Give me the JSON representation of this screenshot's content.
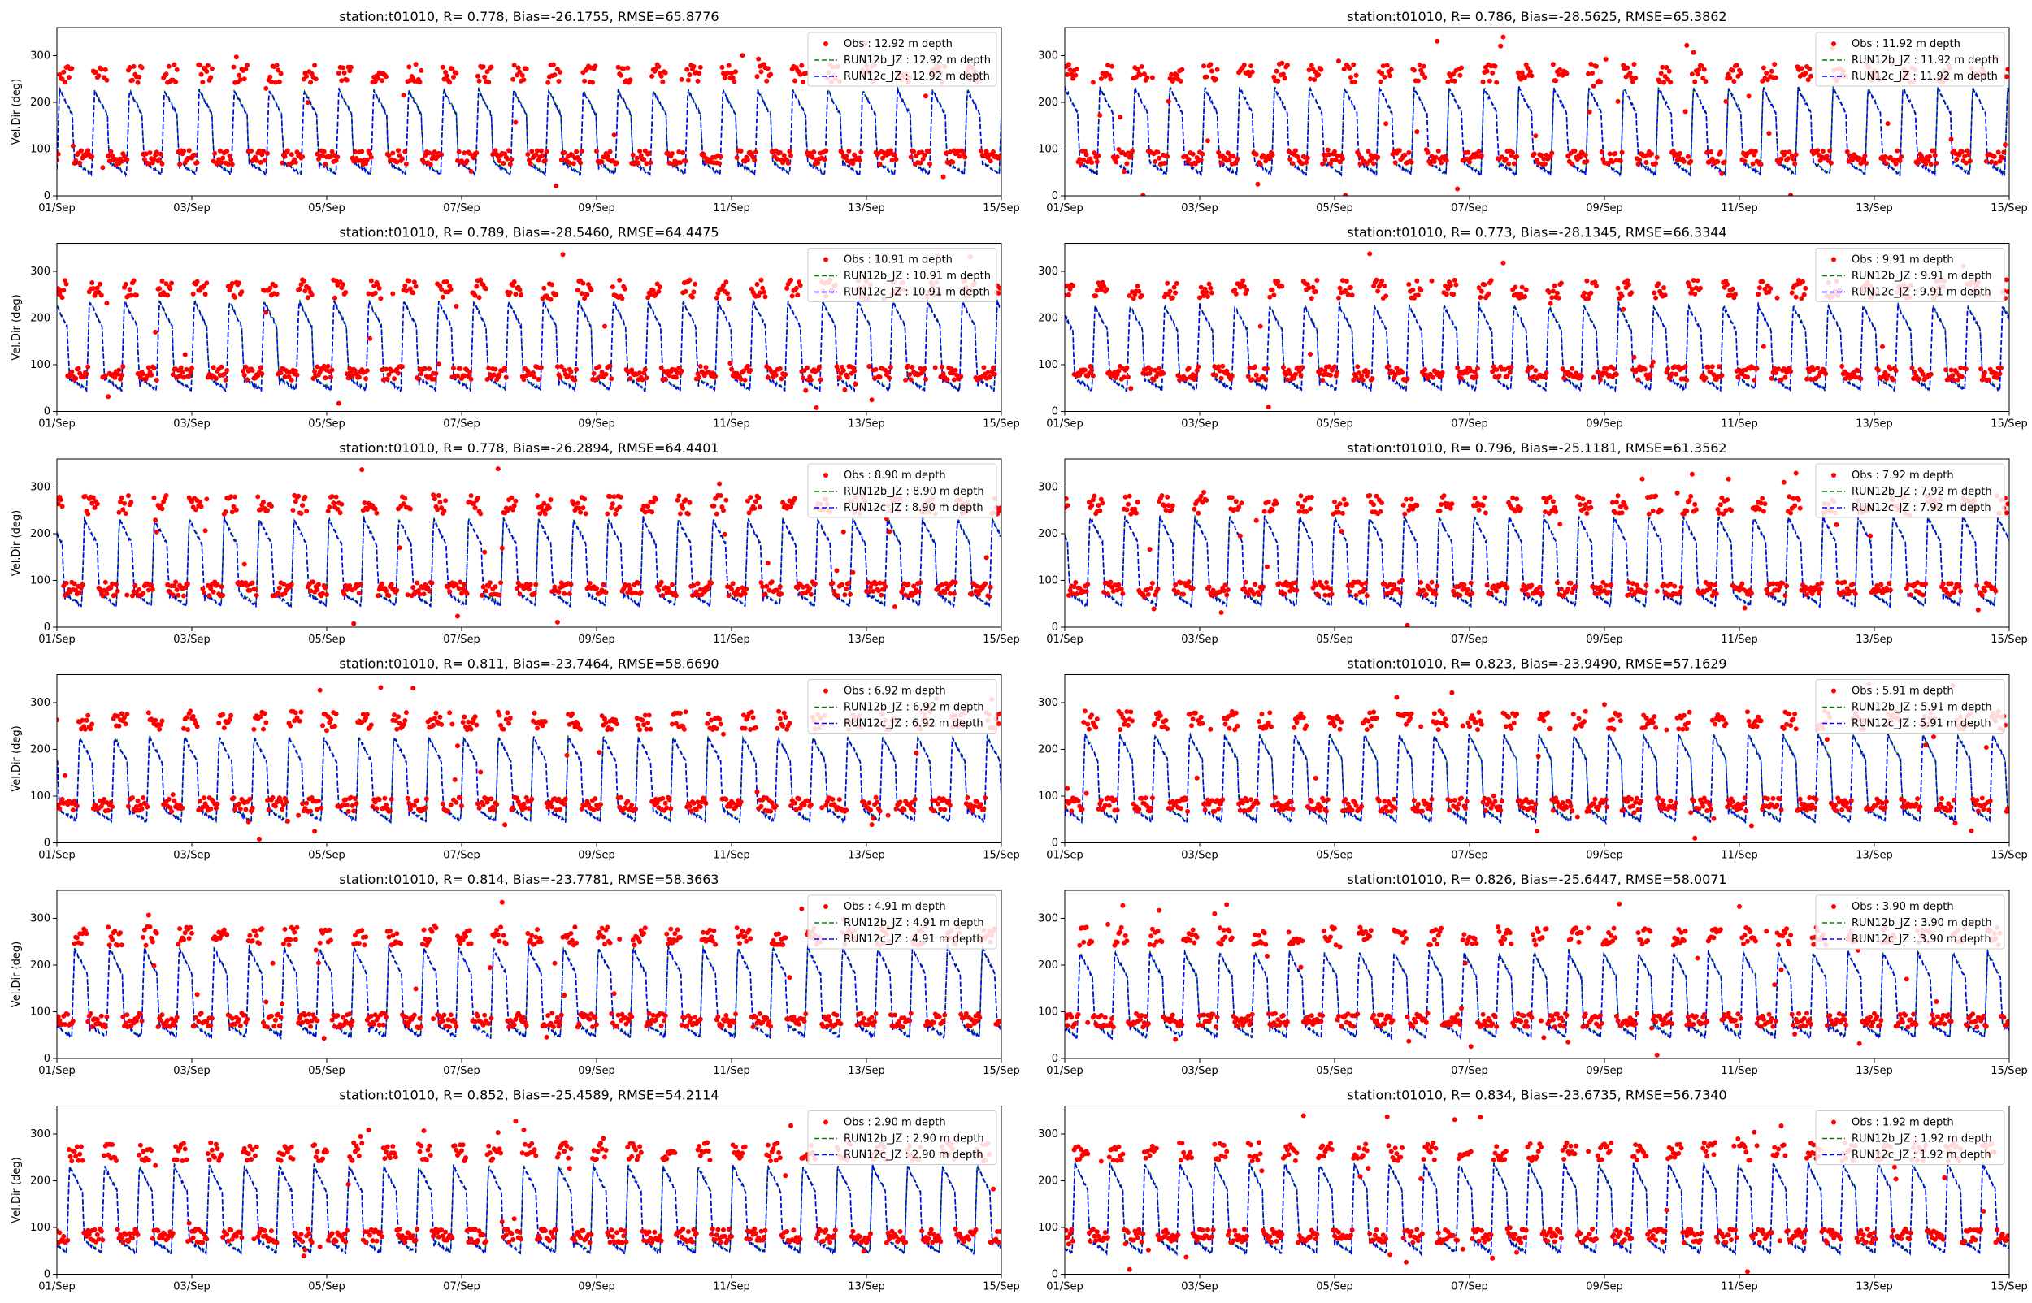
{
  "chart_data": [
    {
      "type": "line",
      "title": "station:t01010, R= 0.778, Bias=-26.1755, RMSE=65.8776",
      "xlabel": "",
      "ylabel": "Vel.Dir (deg)",
      "xticks": [
        "01/Sep",
        "03/Sep",
        "05/Sep",
        "07/Sep",
        "09/Sep",
        "11/Sep",
        "13/Sep",
        "15/Sep"
      ],
      "yticks": [
        0,
        100,
        200,
        300
      ],
      "ylim": [
        0,
        360
      ],
      "legend_location": "top-right",
      "series": [
        {
          "name": "Obs : 12.92 m depth",
          "kind": "scatter",
          "color": "#ff0000"
        },
        {
          "name": "RUN12b_JZ : 12.92 m depth",
          "kind": "dashed",
          "color": "#008000"
        },
        {
          "name": "RUN12c_JZ : 12.92 m depth",
          "kind": "dashed",
          "color": "#0000ff"
        }
      ]
    },
    {
      "type": "line",
      "title": "station:t01010, R= 0.786, Bias=-28.5625, RMSE=65.3862",
      "xlabel": "",
      "ylabel": "",
      "xticks": [
        "01/Sep",
        "03/Sep",
        "05/Sep",
        "07/Sep",
        "09/Sep",
        "11/Sep",
        "13/Sep",
        "15/Sep"
      ],
      "yticks": [
        0,
        100,
        200,
        300
      ],
      "ylim": [
        0,
        360
      ],
      "legend_location": "top-right",
      "series": [
        {
          "name": "Obs : 11.92 m depth",
          "kind": "scatter",
          "color": "#ff0000"
        },
        {
          "name": "RUN12b_JZ : 11.92 m depth",
          "kind": "dashed",
          "color": "#008000"
        },
        {
          "name": "RUN12c_JZ : 11.92 m depth",
          "kind": "dashed",
          "color": "#0000ff"
        }
      ]
    },
    {
      "type": "line",
      "title": "station:t01010, R= 0.789, Bias=-28.5460, RMSE=64.4475",
      "xlabel": "",
      "ylabel": "Vel.Dir (deg)",
      "xticks": [
        "01/Sep",
        "03/Sep",
        "05/Sep",
        "07/Sep",
        "09/Sep",
        "11/Sep",
        "13/Sep",
        "15/Sep"
      ],
      "yticks": [
        0,
        100,
        200,
        300
      ],
      "ylim": [
        0,
        360
      ],
      "legend_location": "top-right",
      "series": [
        {
          "name": "Obs : 10.91 m depth",
          "kind": "scatter",
          "color": "#ff0000"
        },
        {
          "name": "RUN12b_JZ : 10.91 m depth",
          "kind": "dashed",
          "color": "#008000"
        },
        {
          "name": "RUN12c_JZ : 10.91 m depth",
          "kind": "dashed",
          "color": "#0000ff"
        }
      ]
    },
    {
      "type": "line",
      "title": "station:t01010, R= 0.773, Bias=-28.1345, RMSE=66.3344",
      "xlabel": "",
      "ylabel": "",
      "xticks": [
        "01/Sep",
        "03/Sep",
        "05/Sep",
        "07/Sep",
        "09/Sep",
        "11/Sep",
        "13/Sep",
        "15/Sep"
      ],
      "yticks": [
        0,
        100,
        200,
        300
      ],
      "ylim": [
        0,
        360
      ],
      "legend_location": "top-right",
      "series": [
        {
          "name": "Obs : 9.91 m depth",
          "kind": "scatter",
          "color": "#ff0000"
        },
        {
          "name": "RUN12b_JZ : 9.91 m depth",
          "kind": "dashed",
          "color": "#008000"
        },
        {
          "name": "RUN12c_JZ : 9.91 m depth",
          "kind": "dashed",
          "color": "#0000ff"
        }
      ]
    },
    {
      "type": "line",
      "title": "station:t01010, R= 0.778, Bias=-26.2894, RMSE=64.4401",
      "xlabel": "",
      "ylabel": "Vel.Dir (deg)",
      "xticks": [
        "01/Sep",
        "03/Sep",
        "05/Sep",
        "07/Sep",
        "09/Sep",
        "11/Sep",
        "13/Sep",
        "15/Sep"
      ],
      "yticks": [
        0,
        100,
        200,
        300
      ],
      "ylim": [
        0,
        360
      ],
      "legend_location": "top-right",
      "series": [
        {
          "name": "Obs : 8.90 m depth",
          "kind": "scatter",
          "color": "#ff0000"
        },
        {
          "name": "RUN12b_JZ : 8.90 m depth",
          "kind": "dashed",
          "color": "#008000"
        },
        {
          "name": "RUN12c_JZ : 8.90 m depth",
          "kind": "dashed",
          "color": "#0000ff"
        }
      ]
    },
    {
      "type": "line",
      "title": "station:t01010, R= 0.796, Bias=-25.1181, RMSE=61.3562",
      "xlabel": "",
      "ylabel": "",
      "xticks": [
        "01/Sep",
        "03/Sep",
        "05/Sep",
        "07/Sep",
        "09/Sep",
        "11/Sep",
        "13/Sep",
        "15/Sep"
      ],
      "yticks": [
        0,
        100,
        200,
        300
      ],
      "ylim": [
        0,
        360
      ],
      "legend_location": "top-right",
      "series": [
        {
          "name": "Obs : 7.92 m depth",
          "kind": "scatter",
          "color": "#ff0000"
        },
        {
          "name": "RUN12b_JZ : 7.92 m depth",
          "kind": "dashed",
          "color": "#008000"
        },
        {
          "name": "RUN12c_JZ : 7.92 m depth",
          "kind": "dashed",
          "color": "#0000ff"
        }
      ]
    },
    {
      "type": "line",
      "title": "station:t01010, R= 0.811, Bias=-23.7464, RMSE=58.6690",
      "xlabel": "",
      "ylabel": "Vel.Dir (deg)",
      "xticks": [
        "01/Sep",
        "03/Sep",
        "05/Sep",
        "07/Sep",
        "09/Sep",
        "11/Sep",
        "13/Sep",
        "15/Sep"
      ],
      "yticks": [
        0,
        100,
        200,
        300
      ],
      "ylim": [
        0,
        360
      ],
      "legend_location": "top-right",
      "series": [
        {
          "name": "Obs : 6.92 m depth",
          "kind": "scatter",
          "color": "#ff0000"
        },
        {
          "name": "RUN12b_JZ : 6.92 m depth",
          "kind": "dashed",
          "color": "#008000"
        },
        {
          "name": "RUN12c_JZ : 6.92 m depth",
          "kind": "dashed",
          "color": "#0000ff"
        }
      ]
    },
    {
      "type": "line",
      "title": "station:t01010, R= 0.823, Bias=-23.9490, RMSE=57.1629",
      "xlabel": "",
      "ylabel": "",
      "xticks": [
        "01/Sep",
        "03/Sep",
        "05/Sep",
        "07/Sep",
        "09/Sep",
        "11/Sep",
        "13/Sep",
        "15/Sep"
      ],
      "yticks": [
        0,
        100,
        200,
        300
      ],
      "ylim": [
        0,
        360
      ],
      "legend_location": "top-right",
      "series": [
        {
          "name": "Obs : 5.91 m depth",
          "kind": "scatter",
          "color": "#ff0000"
        },
        {
          "name": "RUN12b_JZ : 5.91 m depth",
          "kind": "dashed",
          "color": "#008000"
        },
        {
          "name": "RUN12c_JZ : 5.91 m depth",
          "kind": "dashed",
          "color": "#0000ff"
        }
      ]
    },
    {
      "type": "line",
      "title": "station:t01010, R= 0.814, Bias=-23.7781, RMSE=58.3663",
      "xlabel": "",
      "ylabel": "Vel.Dir (deg)",
      "xticks": [
        "01/Sep",
        "03/Sep",
        "05/Sep",
        "07/Sep",
        "09/Sep",
        "11/Sep",
        "13/Sep",
        "15/Sep"
      ],
      "yticks": [
        0,
        100,
        200,
        300
      ],
      "ylim": [
        0,
        360
      ],
      "legend_location": "top-right",
      "series": [
        {
          "name": "Obs : 4.91 m depth",
          "kind": "scatter",
          "color": "#ff0000"
        },
        {
          "name": "RUN12b_JZ : 4.91 m depth",
          "kind": "dashed",
          "color": "#008000"
        },
        {
          "name": "RUN12c_JZ : 4.91 m depth",
          "kind": "dashed",
          "color": "#0000ff"
        }
      ]
    },
    {
      "type": "line",
      "title": "station:t01010, R= 0.826, Bias=-25.6447, RMSE=58.0071",
      "xlabel": "",
      "ylabel": "",
      "xticks": [
        "01/Sep",
        "03/Sep",
        "05/Sep",
        "07/Sep",
        "09/Sep",
        "11/Sep",
        "13/Sep",
        "15/Sep"
      ],
      "yticks": [
        0,
        100,
        200,
        300
      ],
      "ylim": [
        0,
        360
      ],
      "legend_location": "top-right",
      "series": [
        {
          "name": "Obs : 3.90 m depth",
          "kind": "scatter",
          "color": "#ff0000"
        },
        {
          "name": "RUN12b_JZ : 3.90 m depth",
          "kind": "dashed",
          "color": "#008000"
        },
        {
          "name": "RUN12c_JZ : 3.90 m depth",
          "kind": "dashed",
          "color": "#0000ff"
        }
      ]
    },
    {
      "type": "line",
      "title": "station:t01010, R= 0.852, Bias=-25.4589, RMSE=54.2114",
      "xlabel": "",
      "ylabel": "Vel.Dir (deg)",
      "xticks": [
        "01/Sep",
        "03/Sep",
        "05/Sep",
        "07/Sep",
        "09/Sep",
        "11/Sep",
        "13/Sep",
        "15/Sep"
      ],
      "yticks": [
        0,
        100,
        200,
        300
      ],
      "ylim": [
        0,
        360
      ],
      "legend_location": "top-right",
      "series": [
        {
          "name": "Obs : 2.90 m depth",
          "kind": "scatter",
          "color": "#ff0000"
        },
        {
          "name": "RUN12b_JZ : 2.90 m depth",
          "kind": "dashed",
          "color": "#008000"
        },
        {
          "name": "RUN12c_JZ : 2.90 m depth",
          "kind": "dashed",
          "color": "#0000ff"
        }
      ]
    },
    {
      "type": "line",
      "title": "station:t01010, R= 0.834, Bias=-23.6735, RMSE=56.7340",
      "xlabel": "",
      "ylabel": "",
      "xticks": [
        "01/Sep",
        "03/Sep",
        "05/Sep",
        "07/Sep",
        "09/Sep",
        "11/Sep",
        "13/Sep",
        "15/Sep"
      ],
      "yticks": [
        0,
        100,
        200,
        300
      ],
      "ylim": [
        0,
        360
      ],
      "legend_location": "top-right",
      "series": [
        {
          "name": "Obs : 1.92 m depth",
          "kind": "scatter",
          "color": "#ff0000"
        },
        {
          "name": "RUN12b_JZ : 1.92 m depth",
          "kind": "dashed",
          "color": "#008000"
        },
        {
          "name": "RUN12c_JZ : 1.92 m depth",
          "kind": "dashed",
          "color": "#0000ff"
        }
      ]
    }
  ]
}
